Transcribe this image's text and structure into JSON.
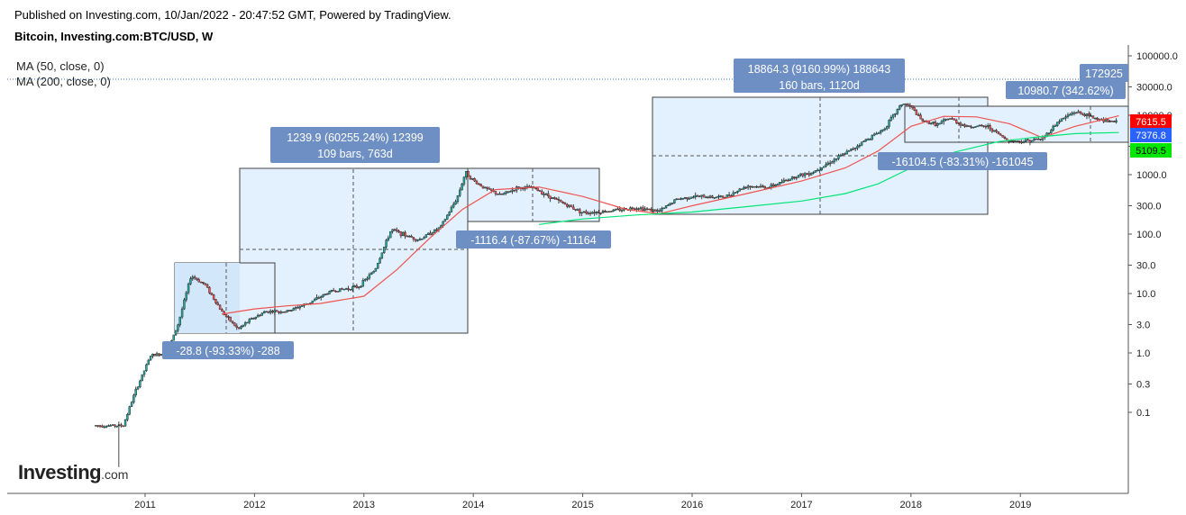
{
  "header": {
    "published": "Published on Investing.com, 10/Jan/2022 - 20:47:52 GMT, Powered by TradingView.",
    "symbol": "Bitcoin, Investing.com:BTC/USD, W"
  },
  "indicators": {
    "ma50": "MA (50, close, 0)",
    "ma200": "MA (200, close, 0)"
  },
  "logo": {
    "main": "Investing",
    "suffix": ".com"
  },
  "colors": {
    "up": "#26a69a",
    "down": "#ef5350",
    "ma50": "#ef5350",
    "ma200": "#00e676",
    "box_fill": "#e3f0fd",
    "box_stroke": "#404040",
    "label_bg": "#6d8fc4",
    "price_red": "#ff0000",
    "price_blue": "#2962ff",
    "price_green": "#00e600"
  },
  "chart_data": {
    "type": "line",
    "scale": "log",
    "x_tick_labels": [
      "2011",
      "2012",
      "2013",
      "2014",
      "2015",
      "2016",
      "2017",
      "2018",
      "2019"
    ],
    "y_tick_labels": [
      "100000.0",
      "30000.0",
      "10000.0",
      "3000.0",
      "1000.0",
      "300.0",
      "100.0",
      "30.0",
      "10.0",
      "3.0",
      "1.0",
      "0.3",
      "0.1"
    ],
    "ylim": [
      0.04,
      150000
    ],
    "series": [
      {
        "name": "MA (50, close, 0)",
        "x": [
          2011.7,
          2012.0,
          2012.3,
          2012.6,
          2013.0,
          2013.3,
          2013.6,
          2013.9,
          2014.2,
          2014.6,
          2015.0,
          2015.4,
          2015.7,
          2016.0,
          2016.5,
          2017.0,
          2017.4,
          2017.7,
          2018.0,
          2018.3,
          2018.6,
          2018.9,
          2019.2,
          2019.5,
          2019.9
        ],
        "values": [
          4.5,
          5.5,
          6.2,
          6.8,
          9,
          25,
          85,
          260,
          560,
          620,
          430,
          260,
          220,
          300,
          480,
          780,
          1300,
          2500,
          6500,
          9600,
          9400,
          7200,
          4200,
          6500,
          9800
        ]
      },
      {
        "name": "MA (200, close, 0)",
        "x": [
          2014.6,
          2015.0,
          2015.5,
          2016.0,
          2016.5,
          2017.0,
          2017.4,
          2017.7,
          2018.0,
          2018.4,
          2018.8,
          2019.1,
          2019.5,
          2019.9
        ],
        "values": [
          145,
          180,
          210,
          235,
          290,
          360,
          480,
          700,
          1300,
          2400,
          3600,
          4200,
          4900,
          5109.5
        ]
      }
    ],
    "price_labels": [
      {
        "value": "7615.5",
        "color": "red"
      },
      {
        "value": "7376.8",
        "color": "blue"
      },
      {
        "value": "5109.5",
        "color": "green"
      }
    ],
    "annotations": [
      {
        "text": "1239.9 (60255.24%) 12399",
        "text2": "109 bars, 763d"
      },
      {
        "text": "-1116.4 (-87.67%) -11164"
      },
      {
        "text": "-28.8 (-93.33%) -288"
      },
      {
        "text": "18864.3 (9160.99%) 188643",
        "text2": "160 bars, 1120d"
      },
      {
        "text": "-16104.5 (-83.31%) -161045"
      },
      {
        "text": "10980.7 (342.62%)"
      },
      {
        "text": "172925"
      }
    ]
  }
}
